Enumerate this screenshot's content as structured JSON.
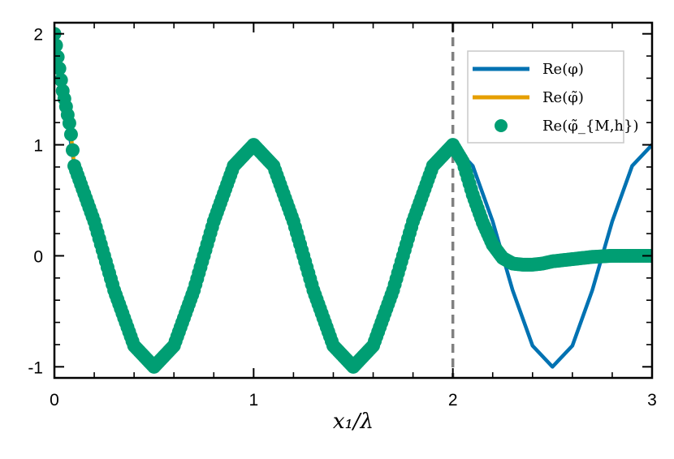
{
  "chart_data": {
    "type": "line",
    "title": "",
    "xlabel": "x₁/λ",
    "ylabel": "",
    "xlim": [
      0,
      3
    ],
    "ylim": [
      -1.1,
      2.1
    ],
    "xticks": [
      0,
      1,
      2,
      3
    ],
    "xtick_labels": [
      "0",
      "1",
      "2",
      "3"
    ],
    "yticks": [
      -1,
      0,
      1,
      2
    ],
    "ytick_labels": [
      "-1",
      "0",
      "1",
      "2"
    ],
    "grid": false,
    "legend_position": "top-right",
    "series": [
      {
        "name": "Re(φ)",
        "style": "line",
        "color": "#0072B2",
        "x": [
          0,
          0.1,
          0.2,
          0.3,
          0.4,
          0.5,
          0.6,
          0.7,
          0.8,
          0.9,
          1.0,
          1.1,
          1.2,
          1.3,
          1.4,
          1.5,
          1.6,
          1.7,
          1.8,
          1.9,
          2.0,
          2.1,
          2.2,
          2.3,
          2.4,
          2.5,
          2.6,
          2.7,
          2.8,
          2.9,
          3.0
        ],
        "y": [
          2.0,
          0.81,
          0.31,
          -0.31,
          -0.81,
          -1.0,
          -0.81,
          -0.31,
          0.31,
          0.81,
          1.0,
          0.81,
          0.31,
          -0.31,
          -0.81,
          -1.0,
          -0.81,
          -0.31,
          0.31,
          0.81,
          1.0,
          0.81,
          0.31,
          -0.31,
          -0.81,
          -1.0,
          -0.81,
          -0.31,
          0.31,
          0.81,
          1.0
        ]
      },
      {
        "name": "Re(φ̃)",
        "style": "line",
        "color": "#E69F00",
        "x": [
          0,
          0.02,
          0.04,
          0.06,
          0.08,
          0.1,
          0.2,
          0.3,
          0.4,
          0.5,
          0.6,
          0.7,
          0.8,
          0.9,
          1.0,
          1.1,
          1.2,
          1.3,
          1.4,
          1.5,
          1.6,
          1.7,
          1.8,
          1.9,
          2.0,
          2.05,
          2.1,
          2.15,
          2.2,
          2.25,
          2.3,
          2.35,
          2.4,
          2.45,
          2.5,
          2.6,
          2.7,
          2.8,
          2.9,
          3.0
        ],
        "y": [
          2.0,
          1.75,
          1.5,
          1.33,
          1.15,
          0.81,
          0.31,
          -0.31,
          -0.81,
          -1.0,
          -0.81,
          -0.31,
          0.31,
          0.81,
          1.0,
          0.81,
          0.31,
          -0.31,
          -0.81,
          -1.0,
          -0.81,
          -0.31,
          0.31,
          0.81,
          1.0,
          0.85,
          0.55,
          0.3,
          0.1,
          -0.02,
          -0.07,
          -0.08,
          -0.08,
          -0.07,
          -0.05,
          -0.03,
          -0.01,
          0.0,
          0.0,
          0.0
        ]
      },
      {
        "name": "Re(φ̃_{M,h})",
        "style": "markers",
        "color": "#009E73",
        "x": [
          0,
          0.02,
          0.04,
          0.06,
          0.08,
          0.1,
          0.2,
          0.3,
          0.4,
          0.5,
          0.6,
          0.7,
          0.8,
          0.9,
          1.0,
          1.1,
          1.2,
          1.3,
          1.4,
          1.5,
          1.6,
          1.7,
          1.8,
          1.9,
          2.0,
          2.05,
          2.1,
          2.15,
          2.2,
          2.25,
          2.3,
          2.35,
          2.4,
          2.45,
          2.5,
          2.6,
          2.7,
          2.8,
          2.9,
          3.0
        ],
        "y": [
          2.0,
          1.75,
          1.5,
          1.33,
          1.15,
          0.81,
          0.31,
          -0.31,
          -0.81,
          -1.0,
          -0.81,
          -0.31,
          0.31,
          0.81,
          1.0,
          0.81,
          0.31,
          -0.31,
          -0.81,
          -1.0,
          -0.81,
          -0.31,
          0.31,
          0.81,
          1.0,
          0.85,
          0.55,
          0.3,
          0.1,
          -0.02,
          -0.07,
          -0.08,
          -0.08,
          -0.07,
          -0.05,
          -0.03,
          -0.01,
          0.0,
          0.0,
          0.0
        ]
      }
    ],
    "annotations": [
      {
        "type": "vertical-dashed-line",
        "x": 2.0,
        "color": "#808080"
      }
    ]
  }
}
